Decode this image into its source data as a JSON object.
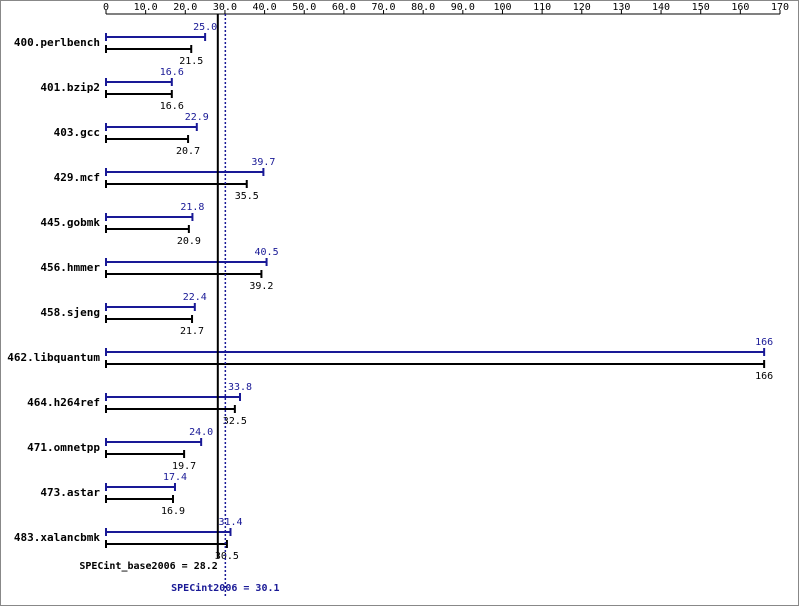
{
  "chart_data": {
    "type": "bar",
    "categories": [
      "400.perlbench",
      "401.bzip2",
      "403.gcc",
      "429.mcf",
      "445.gobmk",
      "456.hmmer",
      "458.sjeng",
      "462.libquantum",
      "464.h264ref",
      "471.omnetpp",
      "473.astar",
      "483.xalancbmk"
    ],
    "series": [
      {
        "color": "#191996",
        "values": [
          25.0,
          16.6,
          22.9,
          39.7,
          21.8,
          40.5,
          22.4,
          166,
          33.8,
          24.0,
          17.4,
          31.4
        ],
        "value_labels": [
          "25.0",
          "16.6",
          "22.9",
          "39.7",
          "21.8",
          "40.5",
          "22.4",
          "166",
          "33.8",
          "24.0",
          "17.4",
          "31.4"
        ]
      },
      {
        "color": "#000000",
        "values": [
          21.5,
          16.6,
          20.7,
          35.5,
          20.9,
          39.2,
          21.7,
          166,
          32.5,
          19.7,
          16.9,
          30.5
        ],
        "value_labels": [
          "21.5",
          "16.6",
          "20.7",
          "35.5",
          "20.9",
          "39.2",
          "21.7",
          "166",
          "32.5",
          "19.7",
          "16.9",
          "30.5"
        ]
      }
    ],
    "xlim": [
      0,
      170
    ],
    "xticks": [
      0,
      {
        "value": 10,
        "label": "10.0"
      },
      {
        "value": 20,
        "label": "20.0"
      },
      {
        "value": 30,
        "label": "30.0"
      },
      {
        "value": 40,
        "label": "40.0"
      },
      {
        "value": 50,
        "label": "50.0"
      },
      {
        "value": 60,
        "label": "60.0"
      },
      {
        "value": 70,
        "label": "70.0"
      },
      {
        "value": 80,
        "label": "80.0"
      },
      {
        "value": 90,
        "label": "90.0"
      },
      100,
      110,
      120,
      130,
      140,
      150,
      160,
      170
    ],
    "base_score": {
      "value": 28.2,
      "label": "SPECint_base2006 = 28.2",
      "color": "#000000"
    },
    "peak_score": {
      "value": 30.1,
      "label": "SPECint2006 = 30.1",
      "color": "#191996"
    }
  }
}
